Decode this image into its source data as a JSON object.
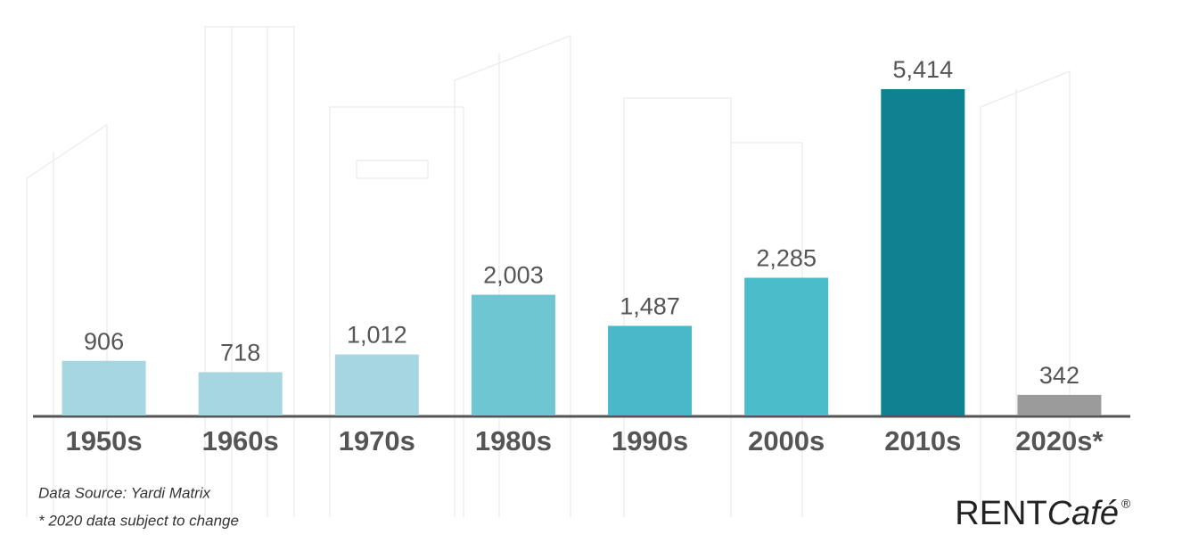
{
  "chart_data": {
    "type": "bar",
    "categories": [
      "1950s",
      "1960s",
      "1970s",
      "1980s",
      "1990s",
      "2000s",
      "2010s",
      "2020s*"
    ],
    "values": [
      906,
      718,
      1012,
      2003,
      1487,
      2285,
      5414,
      342
    ],
    "value_labels": [
      "906",
      "718",
      "1,012",
      "2,003",
      "1,487",
      "2,285",
      "5,414",
      "342"
    ],
    "colors": [
      "#a6d6df",
      "#a6d6df",
      "#a6d6df",
      "#6ec6d2",
      "#4ab8c8",
      "#4bbcca",
      "#0e8290",
      "#9b9b9b"
    ],
    "source": "Data Source: Yardi Matrix",
    "note": "* 2020 data subject to change"
  },
  "logo": {
    "text": "RENT",
    "accent": "Café",
    "mark": "®"
  }
}
